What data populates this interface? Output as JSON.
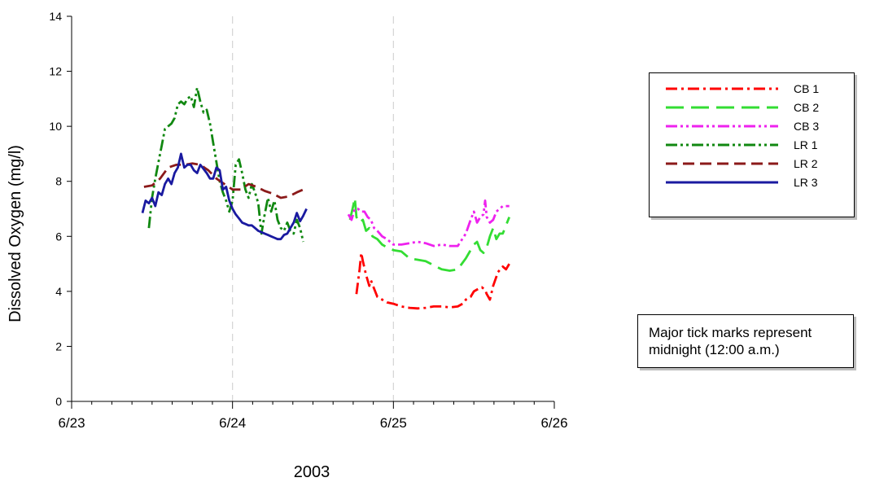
{
  "chart_data": {
    "type": "line",
    "title": "",
    "xlabel": "2003",
    "ylabel": "Dissolved Oxygen (mg/l)",
    "xlim": [
      0,
      3
    ],
    "ylim": [
      0,
      14
    ],
    "x_ticks": [
      {
        "value": 0,
        "label": "6/23"
      },
      {
        "value": 1,
        "label": "6/24"
      },
      {
        "value": 2,
        "label": "6/25"
      },
      {
        "value": 3,
        "label": "6/26"
      }
    ],
    "y_ticks": [
      0,
      2,
      4,
      6,
      8,
      10,
      12,
      14
    ],
    "midnight_reference_lines": [
      1,
      2
    ],
    "legend_position": "right",
    "series": [
      {
        "name": "CB 1",
        "color": "#ff0000",
        "dash": "dash-dot",
        "x": [
          1.77,
          1.79,
          1.8,
          1.81,
          1.83,
          1.85,
          1.86,
          1.88,
          1.9,
          1.93,
          1.96,
          2.0,
          2.05,
          2.1,
          2.15,
          2.2,
          2.25,
          2.3,
          2.35,
          2.4,
          2.43,
          2.45,
          2.48,
          2.5,
          2.53,
          2.55,
          2.57,
          2.58,
          2.6,
          2.62,
          2.65,
          2.68,
          2.7,
          2.72
        ],
        "y": [
          3.9,
          4.8,
          5.4,
          5.1,
          4.6,
          4.2,
          4.4,
          4.1,
          3.8,
          3.7,
          3.6,
          3.55,
          3.45,
          3.4,
          3.38,
          3.4,
          3.45,
          3.45,
          3.42,
          3.45,
          3.55,
          3.7,
          3.8,
          4.0,
          4.1,
          4.15,
          4.05,
          3.9,
          3.7,
          4.2,
          4.7,
          4.9,
          4.8,
          5.0
        ]
      },
      {
        "name": "CB 2",
        "color": "#33dd33",
        "dash": "long-dash",
        "x": [
          1.73,
          1.75,
          1.76,
          1.77,
          1.79,
          1.81,
          1.83,
          1.85,
          1.87,
          1.9,
          1.93,
          1.96,
          2.0,
          2.05,
          2.1,
          2.15,
          2.2,
          2.25,
          2.3,
          2.35,
          2.4,
          2.45,
          2.48,
          2.5,
          2.52,
          2.54,
          2.56,
          2.58,
          2.6,
          2.62,
          2.64,
          2.66,
          2.68,
          2.7,
          2.72
        ],
        "y": [
          6.6,
          7.1,
          7.4,
          6.7,
          6.5,
          6.6,
          6.2,
          6.3,
          6.0,
          5.9,
          5.7,
          5.6,
          5.5,
          5.45,
          5.2,
          5.15,
          5.1,
          4.95,
          4.8,
          4.75,
          4.8,
          5.2,
          5.5,
          5.7,
          5.8,
          5.5,
          5.4,
          5.6,
          6.0,
          6.3,
          5.9,
          6.1,
          6.1,
          6.4,
          6.7
        ]
      },
      {
        "name": "CB 3",
        "color": "#ee22ee",
        "dash": "dash-dot-dot",
        "x": [
          1.72,
          1.74,
          1.76,
          1.78,
          1.8,
          1.82,
          1.84,
          1.86,
          1.88,
          1.9,
          1.93,
          1.96,
          2.0,
          2.05,
          2.1,
          2.15,
          2.2,
          2.25,
          2.3,
          2.35,
          2.4,
          2.45,
          2.48,
          2.5,
          2.52,
          2.54,
          2.56,
          2.57,
          2.58,
          2.6,
          2.62,
          2.64,
          2.66,
          2.68,
          2.7,
          2.72
        ],
        "y": [
          6.8,
          6.6,
          7.0,
          7.0,
          6.9,
          6.9,
          6.7,
          6.6,
          6.3,
          6.2,
          6.0,
          5.9,
          5.7,
          5.7,
          5.75,
          5.8,
          5.75,
          5.65,
          5.7,
          5.65,
          5.65,
          6.1,
          6.6,
          6.9,
          6.5,
          6.7,
          6.8,
          7.3,
          6.7,
          6.5,
          6.6,
          6.9,
          7.0,
          7.1,
          7.1,
          7.1
        ]
      },
      {
        "name": "LR 1",
        "color": "#118811",
        "dash": "dash-dot-dot",
        "x": [
          0.48,
          0.5,
          0.52,
          0.54,
          0.56,
          0.58,
          0.6,
          0.62,
          0.64,
          0.66,
          0.68,
          0.7,
          0.72,
          0.74,
          0.76,
          0.78,
          0.8,
          0.82,
          0.84,
          0.86,
          0.88,
          0.9,
          0.92,
          0.94,
          0.96,
          0.98,
          1.0,
          1.02,
          1.04,
          1.06,
          1.08,
          1.1,
          1.12,
          1.14,
          1.16,
          1.18,
          1.2,
          1.22,
          1.24,
          1.26,
          1.28,
          1.3,
          1.32,
          1.34,
          1.36,
          1.38,
          1.4,
          1.42,
          1.44
        ],
        "y": [
          6.3,
          7.4,
          8.1,
          8.7,
          9.3,
          9.9,
          10.0,
          10.1,
          10.3,
          10.8,
          10.9,
          10.8,
          11.0,
          11.1,
          10.7,
          11.4,
          10.9,
          10.5,
          10.6,
          10.1,
          9.4,
          8.7,
          8.0,
          7.6,
          7.3,
          6.9,
          7.3,
          8.6,
          8.8,
          8.3,
          7.7,
          7.4,
          7.9,
          7.6,
          7.2,
          6.1,
          6.8,
          7.4,
          6.9,
          7.3,
          6.6,
          6.3,
          6.2,
          6.5,
          6.2,
          6.1,
          6.6,
          6.3,
          5.8
        ]
      },
      {
        "name": "LR 2",
        "color": "#8b1a1a",
        "dash": "dash",
        "x": [
          0.45,
          0.5,
          0.55,
          0.6,
          0.65,
          0.7,
          0.75,
          0.8,
          0.85,
          0.9,
          0.95,
          1.0,
          1.05,
          1.1,
          1.15,
          1.2,
          1.25,
          1.3,
          1.35,
          1.4,
          1.44
        ],
        "y": [
          7.8,
          7.85,
          8.1,
          8.5,
          8.6,
          8.6,
          8.65,
          8.6,
          8.4,
          8.1,
          7.9,
          7.7,
          7.7,
          7.9,
          7.8,
          7.65,
          7.55,
          7.4,
          7.45,
          7.6,
          7.7
        ]
      },
      {
        "name": "LR 3",
        "color": "#1a1aa0",
        "dash": "solid",
        "x": [
          0.44,
          0.46,
          0.48,
          0.5,
          0.52,
          0.54,
          0.56,
          0.58,
          0.6,
          0.62,
          0.64,
          0.66,
          0.68,
          0.7,
          0.72,
          0.74,
          0.76,
          0.78,
          0.8,
          0.82,
          0.84,
          0.86,
          0.88,
          0.9,
          0.92,
          0.94,
          0.96,
          0.98,
          1.0,
          1.02,
          1.04,
          1.06,
          1.08,
          1.1,
          1.12,
          1.14,
          1.16,
          1.18,
          1.2,
          1.22,
          1.24,
          1.26,
          1.28,
          1.3,
          1.32,
          1.34,
          1.36,
          1.38,
          1.4,
          1.42,
          1.44,
          1.46
        ],
        "y": [
          6.85,
          7.3,
          7.2,
          7.4,
          7.1,
          7.6,
          7.5,
          7.9,
          8.1,
          7.9,
          8.3,
          8.5,
          9.0,
          8.5,
          8.6,
          8.6,
          8.4,
          8.3,
          8.6,
          8.45,
          8.3,
          8.1,
          8.1,
          8.5,
          8.4,
          7.7,
          7.8,
          7.3,
          7.0,
          6.8,
          6.65,
          6.5,
          6.45,
          6.4,
          6.4,
          6.3,
          6.2,
          6.15,
          6.1,
          6.05,
          6.0,
          5.95,
          5.9,
          5.9,
          6.05,
          6.1,
          6.3,
          6.5,
          6.85,
          6.55,
          6.75,
          7.0
        ]
      }
    ]
  },
  "note": {
    "line1": "Major tick marks represent",
    "line2": "midnight (12:00 a.m.)"
  }
}
